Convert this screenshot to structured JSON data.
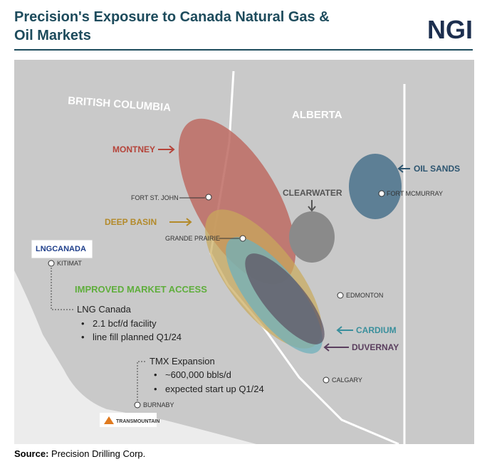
{
  "header": {
    "title_line1": "Precision's Exposure to Canada Natural Gas &",
    "title_line2": "Oil Markets",
    "logo": "NGI"
  },
  "map": {
    "regions": [
      "BRITISH COLUMBIA",
      "ALBERTA"
    ],
    "plays": [
      "MONTNEY",
      "DEEP BASIN",
      "CLEARWATER",
      "OIL SANDS",
      "CARDIUM",
      "DUVERNAY"
    ],
    "cities": [
      "FORT ST. JOHN",
      "GRANDE PRAIRIE",
      "FORT MCMURRAY",
      "EDMONTON",
      "CALGARY",
      "KITIMAT",
      "BURNABY"
    ],
    "banner": "IMPROVED MARKET ACCESS"
  },
  "callouts": {
    "lng": {
      "title": "LNG Canada",
      "bullets": [
        "2.1 bcf/d facility",
        "line fill planned Q1/24"
      ]
    },
    "tmx": {
      "title": "TMX Expansion",
      "bullets": [
        "~600,000 bbls/d",
        "expected start up Q1/24"
      ]
    }
  },
  "logos": {
    "lng": "LNGCANADA",
    "trans": "TRANSMOUNTAIN"
  },
  "source": {
    "label": "Source:",
    "text": "Precision Drilling Corp."
  }
}
